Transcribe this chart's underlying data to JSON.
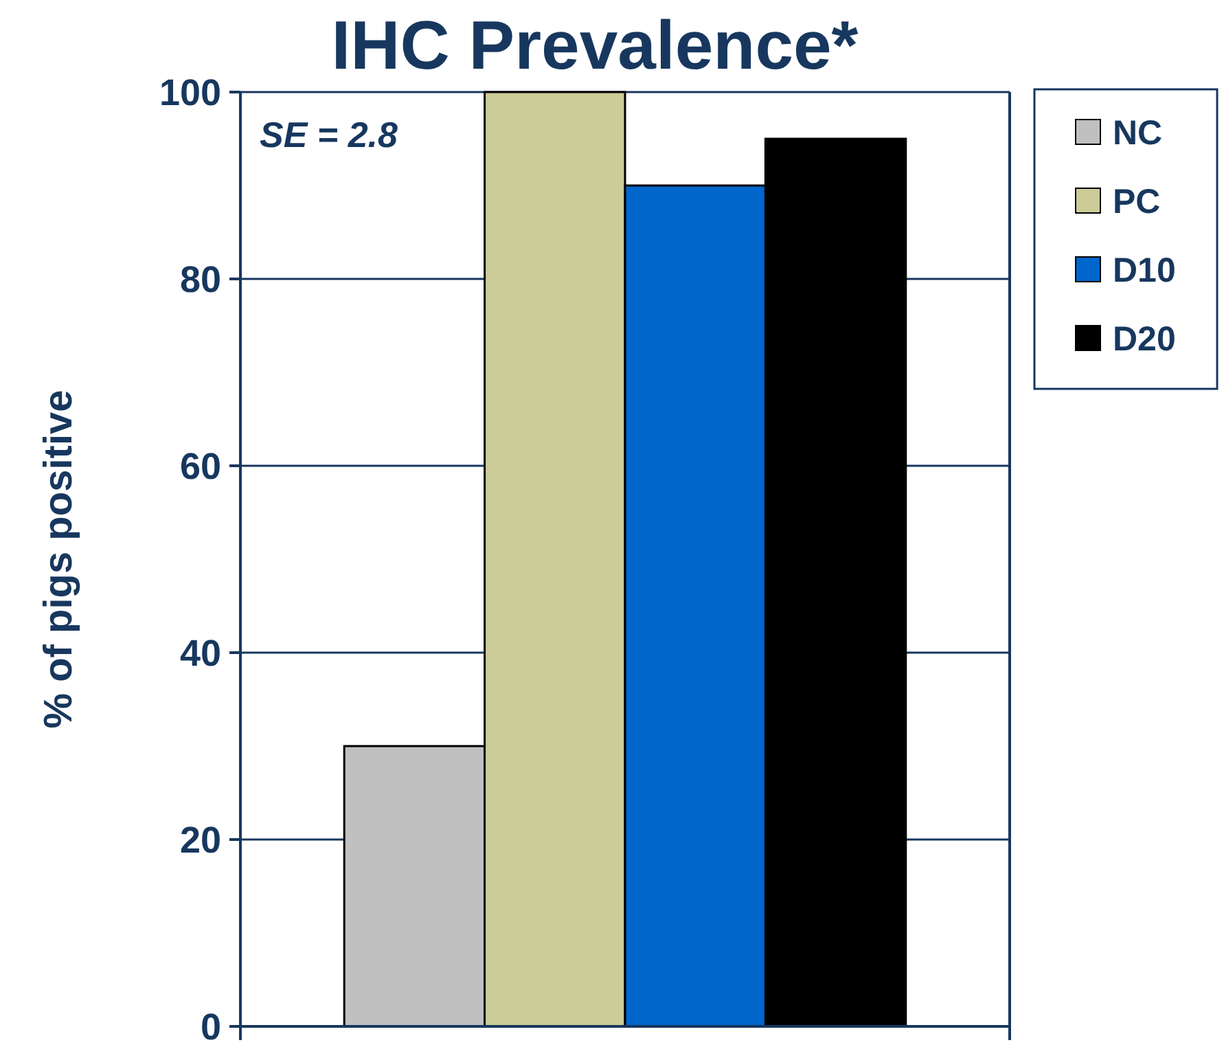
{
  "chart_data": {
    "type": "bar",
    "title": "IHC Prevalence*",
    "ylabel": "% of pigs positive",
    "annotations": [
      "SE = 2.8"
    ],
    "categories": [
      null
    ],
    "series": [
      {
        "name": "NC",
        "color": "#c0c0c0",
        "values": [
          30
        ]
      },
      {
        "name": "PC",
        "color": "#cccc99",
        "values": [
          100
        ]
      },
      {
        "name": "D10",
        "color": "#0066cc",
        "values": [
          90
        ]
      },
      {
        "name": "D20",
        "color": "#000000",
        "values": [
          95
        ]
      }
    ],
    "ylim": [
      0,
      100
    ],
    "yticks": [
      0,
      20,
      40,
      60,
      80,
      100
    ],
    "grid": "y",
    "legend": "top right"
  }
}
